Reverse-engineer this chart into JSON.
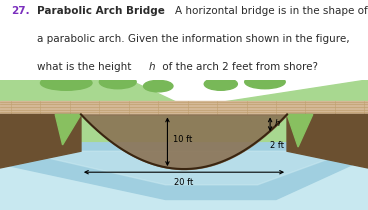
{
  "number_color": "#7B2FBE",
  "text_color": "#2b2b2b",
  "bg_color": "#ffffff",
  "label_10ft": "10 ft",
  "label_h": "h",
  "label_2ft": "2 ft",
  "label_20ft": "20 ft",
  "water_color_light": "#c8e8f0",
  "water_color_mid": "#a0cfe0",
  "water_color_dark": "#b8dcea",
  "arch_shadow": "#8B7355",
  "arch_dark": "#7a6040",
  "bridge_tan": "#D4B896",
  "bridge_line": "#c0a070",
  "green_light": "#a8d890",
  "green_mid": "#78b858",
  "green_dark": "#4a8830",
  "shore_green": "#88c060",
  "slope_brown": "#6b5030"
}
